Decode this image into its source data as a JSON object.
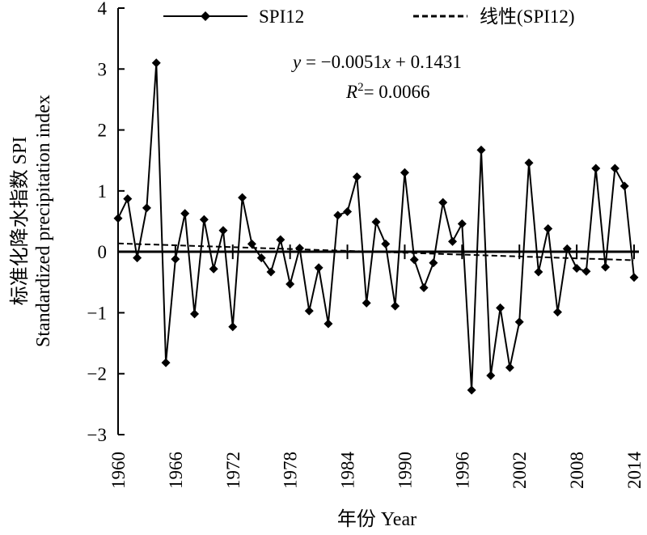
{
  "chart_data": {
    "type": "line",
    "title": "",
    "xlabel": "年份 Year",
    "ylabel_cn": "标准化降水指数 SPI",
    "ylabel_en": "Standardized precipitation index",
    "x": [
      1960,
      1961,
      1962,
      1963,
      1964,
      1965,
      1966,
      1967,
      1968,
      1969,
      1970,
      1971,
      1972,
      1973,
      1974,
      1975,
      1976,
      1977,
      1978,
      1979,
      1980,
      1981,
      1982,
      1983,
      1984,
      1985,
      1986,
      1987,
      1988,
      1989,
      1990,
      1991,
      1992,
      1993,
      1994,
      1995,
      1996,
      1997,
      1998,
      1999,
      2000,
      2001,
      2002,
      2003,
      2004,
      2005,
      2006,
      2007,
      2008,
      2009,
      2010,
      2011,
      2012,
      2013,
      2014
    ],
    "xlim": [
      1960,
      2014
    ],
    "ylim": [
      -3,
      4
    ],
    "x_ticks": [
      "1960",
      "1966",
      "1972",
      "1978",
      "1984",
      "1990",
      "1996",
      "2002",
      "2008",
      "2014"
    ],
    "y_ticks": [
      "4",
      "3",
      "2",
      "1",
      "0",
      "−1",
      "−2",
      "−3"
    ],
    "series": [
      {
        "name": "SPI12",
        "values": [
          0.55,
          0.87,
          -0.1,
          0.72,
          3.1,
          -1.82,
          -0.12,
          0.63,
          -1.02,
          0.53,
          -0.28,
          0.35,
          -1.23,
          0.89,
          0.13,
          -0.1,
          -0.33,
          0.2,
          -0.53,
          0.06,
          -0.97,
          -0.26,
          -1.18,
          0.6,
          0.66,
          1.23,
          -0.84,
          0.49,
          0.13,
          -0.89,
          1.3,
          -0.13,
          -0.59,
          -0.18,
          0.81,
          0.17,
          0.46,
          -2.27,
          1.67,
          -2.03,
          -0.92,
          -1.9,
          -1.15,
          1.46,
          -0.33,
          0.38,
          -0.99,
          0.05,
          -0.27,
          -0.32,
          1.37,
          -0.25,
          1.37,
          1.08,
          -0.42
        ]
      }
    ],
    "trendline": {
      "name": "线性(SPI12)",
      "slope": -0.0051,
      "intercept": 0.1431
    },
    "annotations": {
      "equation": {
        "y": "y",
        "eq_num": " = −0.0051",
        "x": "x",
        "rest": " + 0.1431"
      },
      "r2": {
        "r": "R",
        "sup": "2",
        "val": "= 0.0066"
      }
    },
    "legend_position": "top",
    "grid": false
  }
}
